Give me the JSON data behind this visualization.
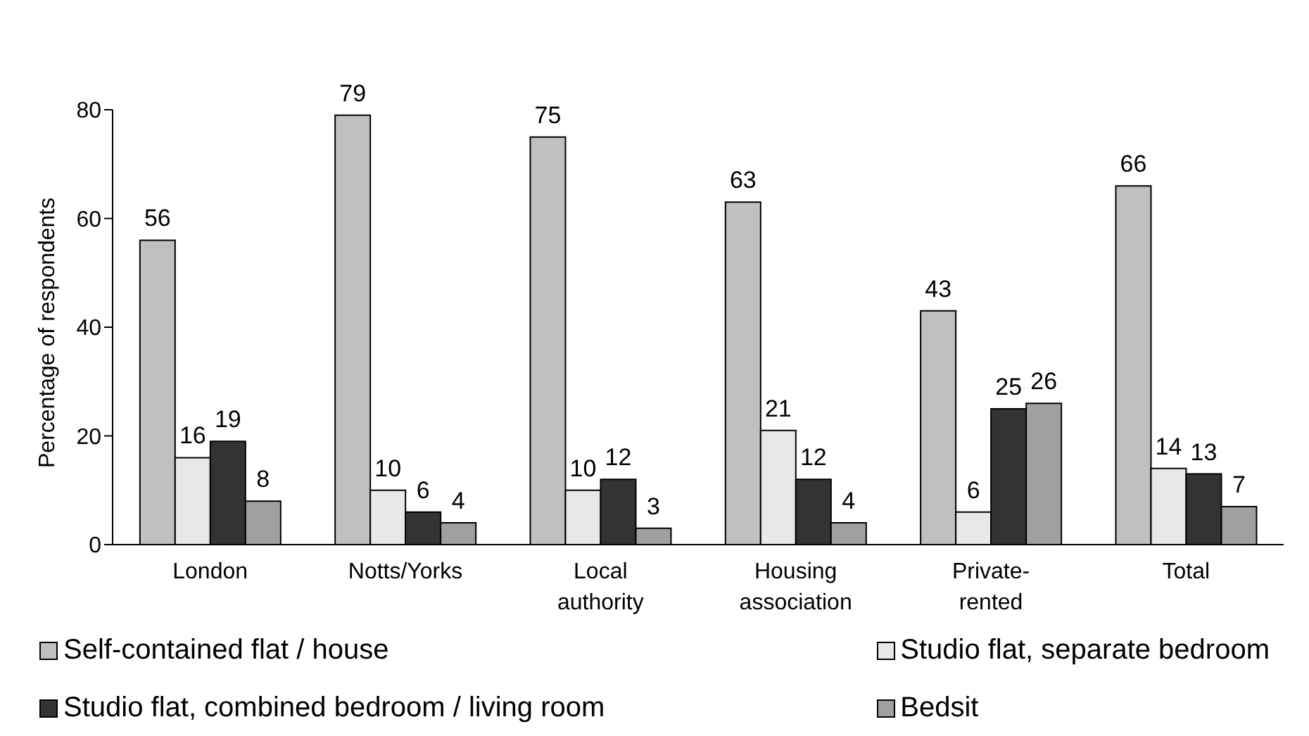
{
  "chart_data": {
    "type": "bar",
    "ylabel": "Percentage of respondents",
    "categories": [
      "London",
      "Notts/Yorks",
      "Local authority",
      "Housing association",
      "Private-rented",
      "Total"
    ],
    "series": [
      {
        "name": "Self-contained flat / house",
        "color": "#c0c0c0",
        "values": [
          56,
          79,
          75,
          63,
          43,
          66
        ]
      },
      {
        "name": "Studio flat, separate bedroom",
        "color": "#e8e8e8",
        "values": [
          16,
          10,
          10,
          21,
          6,
          14
        ]
      },
      {
        "name": "Studio flat, combined bedroom / living room",
        "color": "#333333",
        "values": [
          19,
          6,
          12,
          12,
          25,
          13
        ]
      },
      {
        "name": "Bedsit",
        "color": "#a0a0a0",
        "values": [
          8,
          4,
          3,
          4,
          26,
          7
        ]
      }
    ],
    "ylim": [
      0,
      80
    ],
    "yticks": [
      0,
      20,
      40,
      60,
      80
    ],
    "grid": false,
    "legend": "bottom",
    "data_labels": true
  }
}
